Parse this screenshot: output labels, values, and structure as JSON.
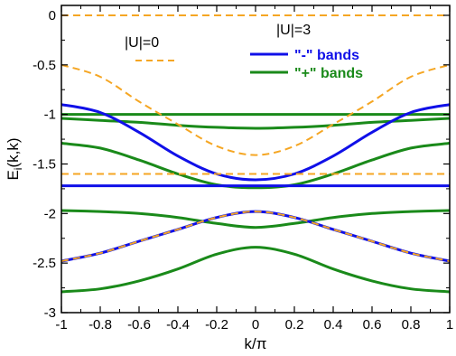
{
  "chart_data": {
    "type": "line",
    "xlabel": "k/π",
    "ylabel": "E",
    "ylabel_sub": "i",
    "ylabel_suffix": "(k,k)",
    "xlim": [
      -1,
      1
    ],
    "ylim": [
      -3,
      0.1
    ],
    "xticks": [
      -1,
      -0.8,
      -0.6,
      -0.4,
      -0.2,
      0,
      0.2,
      0.4,
      0.6,
      0.8,
      1
    ],
    "xtick_labels": [
      "-1",
      "-0.8",
      "-0.6",
      "-0.4",
      "-0.2",
      "0",
      "0.2",
      "0.4",
      "0.6",
      "0.8",
      "1"
    ],
    "yticks": [
      0,
      -0.5,
      -1,
      -1.5,
      -2,
      -2.5,
      -3
    ],
    "ytick_labels": [
      "0",
      "-0.5",
      "-1",
      "-1.5",
      "-2",
      "-2.5",
      "-3"
    ],
    "grid": false,
    "legend_u0": {
      "title": "|U|=0",
      "color": "#f5a623",
      "style": "dashed"
    },
    "legend_u3": {
      "title": "|U|=3",
      "entries": [
        {
          "label": "\"-\" bands",
          "color": "#1010e8"
        },
        {
          "label": "\"+\" bands",
          "color": "#1a8a1a"
        }
      ]
    },
    "series": [
      {
        "group": "U0",
        "color": "#f5a623",
        "dashed": true,
        "x": [
          -1,
          -0.8,
          -0.6,
          -0.4,
          -0.2,
          0,
          0.2,
          0.4,
          0.6,
          0.8,
          1
        ],
        "y": [
          0,
          0,
          0,
          0,
          0,
          0,
          0,
          0,
          0,
          0,
          0
        ]
      },
      {
        "group": "U0",
        "color": "#f5a623",
        "dashed": true,
        "x": [
          -1,
          -0.8,
          -0.6,
          -0.4,
          -0.2,
          0,
          0.2,
          0.4,
          0.6,
          0.8,
          1
        ],
        "y": [
          -0.5,
          -0.62,
          -0.87,
          -1.1,
          -1.32,
          -1.41,
          -1.32,
          -1.1,
          -0.87,
          -0.62,
          -0.5
        ]
      },
      {
        "group": "U0",
        "color": "#f5a623",
        "dashed": true,
        "x": [
          -1,
          -0.8,
          -0.6,
          -0.4,
          -0.2,
          0,
          0.2,
          0.4,
          0.6,
          0.8,
          1
        ],
        "y": [
          -1.6,
          -1.6,
          -1.6,
          -1.6,
          -1.6,
          -1.6,
          -1.6,
          -1.6,
          -1.6,
          -1.6,
          -1.6
        ]
      },
      {
        "group": "U0",
        "color": "#f5a623",
        "dashed": true,
        "x": [
          -1,
          -0.8,
          -0.6,
          -0.4,
          -0.2,
          0,
          0.2,
          0.4,
          0.6,
          0.8,
          1
        ],
        "y": [
          -2.48,
          -2.4,
          -2.28,
          -2.16,
          -2.04,
          -1.98,
          -2.04,
          -2.16,
          -2.28,
          -2.4,
          -2.48
        ]
      },
      {
        "group": "minus",
        "color": "#1010e8",
        "dashed": false,
        "x": [
          -1,
          -0.8,
          -0.6,
          -0.4,
          -0.2,
          0,
          0.2,
          0.4,
          0.6,
          0.8,
          1
        ],
        "y": [
          -0.9,
          -0.98,
          -1.18,
          -1.42,
          -1.6,
          -1.66,
          -1.6,
          -1.42,
          -1.18,
          -0.98,
          -0.9
        ]
      },
      {
        "group": "minus",
        "color": "#1010e8",
        "dashed": false,
        "x": [
          -1,
          -0.8,
          -0.6,
          -0.4,
          -0.2,
          0,
          0.2,
          0.4,
          0.6,
          0.8,
          1
        ],
        "y": [
          -1.72,
          -1.72,
          -1.72,
          -1.72,
          -1.72,
          -1.72,
          -1.72,
          -1.72,
          -1.72,
          -1.72,
          -1.72
        ]
      },
      {
        "group": "minus",
        "color": "#1010e8",
        "dashed": false,
        "x": [
          -1,
          -0.8,
          -0.6,
          -0.4,
          -0.2,
          0,
          0.2,
          0.4,
          0.6,
          0.8,
          1
        ],
        "y": [
          -2.48,
          -2.4,
          -2.28,
          -2.16,
          -2.04,
          -1.98,
          -2.04,
          -2.16,
          -2.28,
          -2.4,
          -2.48
        ]
      },
      {
        "group": "plus",
        "color": "#1a8a1a",
        "dashed": false,
        "x": [
          -1,
          -0.8,
          -0.6,
          -0.4,
          -0.2,
          0,
          0.2,
          0.4,
          0.6,
          0.8,
          1
        ],
        "y": [
          -1.0,
          -1.0,
          -1.0,
          -1.0,
          -1.0,
          -1.0,
          -1.0,
          -1.0,
          -1.0,
          -1.0,
          -1.0
        ]
      },
      {
        "group": "plus",
        "color": "#1a8a1a",
        "dashed": false,
        "x": [
          -1,
          -0.8,
          -0.6,
          -0.4,
          -0.2,
          0,
          0.2,
          0.4,
          0.6,
          0.8,
          1
        ],
        "y": [
          -1.04,
          -1.06,
          -1.08,
          -1.11,
          -1.13,
          -1.14,
          -1.13,
          -1.11,
          -1.08,
          -1.06,
          -1.04
        ]
      },
      {
        "group": "plus",
        "color": "#1a8a1a",
        "dashed": false,
        "x": [
          -1,
          -0.8,
          -0.6,
          -0.4,
          -0.2,
          0,
          0.2,
          0.4,
          0.6,
          0.8,
          1
        ],
        "y": [
          -1.29,
          -1.34,
          -1.46,
          -1.6,
          -1.71,
          -1.74,
          -1.71,
          -1.6,
          -1.46,
          -1.34,
          -1.29
        ]
      },
      {
        "group": "plus",
        "color": "#1a8a1a",
        "dashed": false,
        "x": [
          -1,
          -0.8,
          -0.6,
          -0.4,
          -0.2,
          0,
          0.2,
          0.4,
          0.6,
          0.8,
          1
        ],
        "y": [
          -1.97,
          -1.98,
          -2.0,
          -2.04,
          -2.1,
          -2.14,
          -2.1,
          -2.04,
          -2.0,
          -1.98,
          -1.97
        ]
      },
      {
        "group": "plus",
        "color": "#1a8a1a",
        "dashed": false,
        "x": [
          -1,
          -0.8,
          -0.6,
          -0.4,
          -0.2,
          0,
          0.2,
          0.4,
          0.6,
          0.8,
          1
        ],
        "y": [
          -2.79,
          -2.76,
          -2.68,
          -2.56,
          -2.41,
          -2.34,
          -2.41,
          -2.56,
          -2.68,
          -2.76,
          -2.79
        ]
      }
    ]
  }
}
